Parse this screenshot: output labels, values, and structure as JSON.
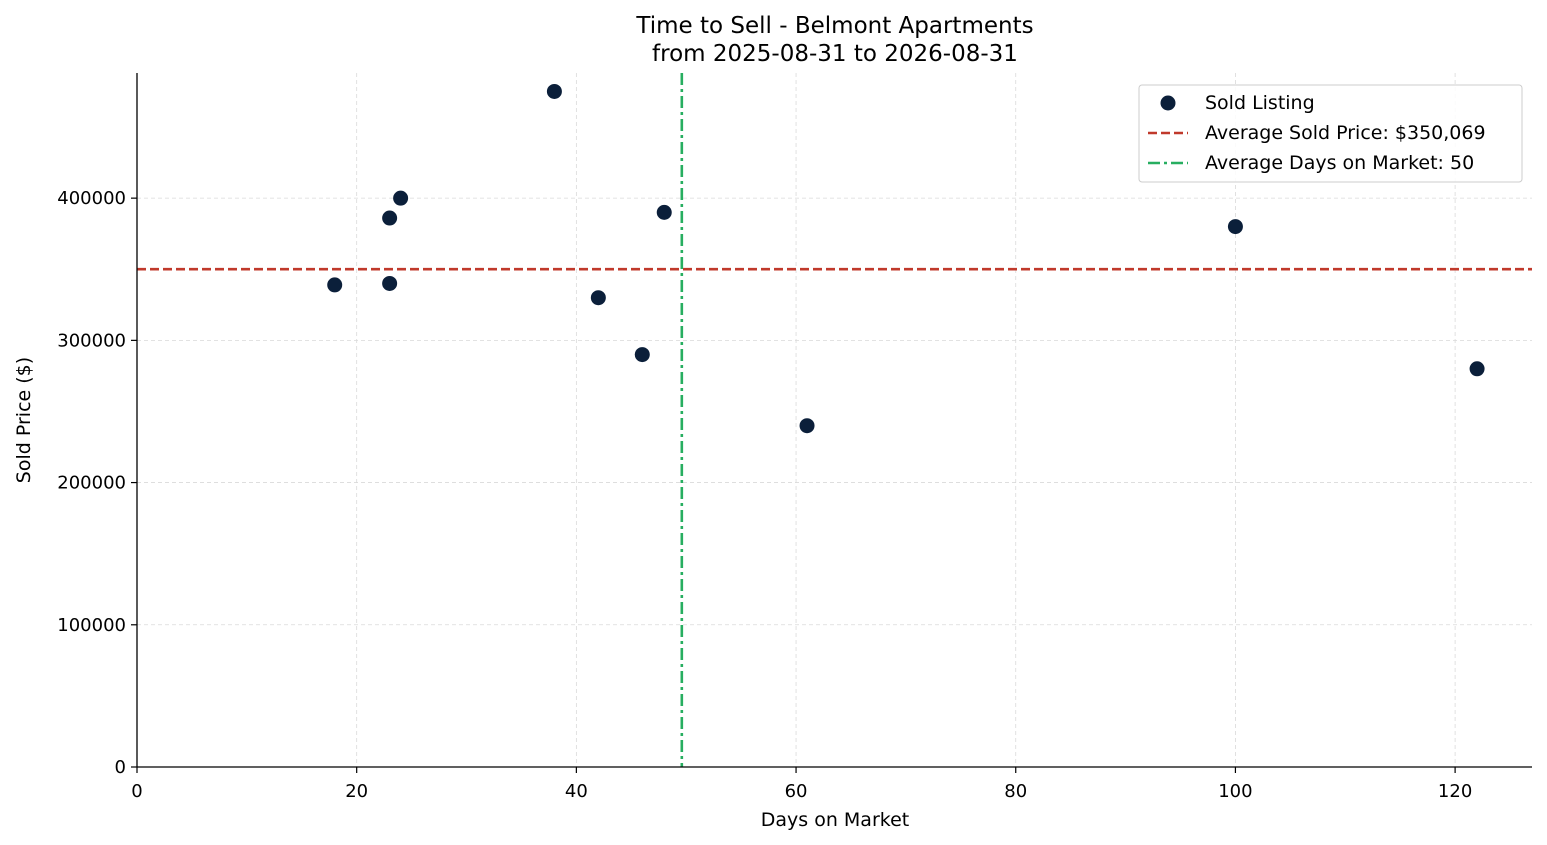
{
  "chart_data": {
    "type": "scatter",
    "title": "Time to Sell - Belmont Apartments",
    "subtitle": "from 2025-08-31 to 2026-08-31",
    "xlabel": "Days on Market",
    "ylabel": "Sold Price ($)",
    "xlim": [
      0,
      127
    ],
    "ylim": [
      0,
      488000
    ],
    "x_ticks": [
      0,
      20,
      40,
      60,
      80,
      100,
      120
    ],
    "y_ticks": [
      0,
      100000,
      200000,
      300000,
      400000
    ],
    "grid": true,
    "legend_position": "top-right",
    "series": [
      {
        "name": "Sold Listing",
        "color": "#0b1f3a",
        "points": [
          {
            "x": 18,
            "y": 339000
          },
          {
            "x": 23,
            "y": 386000
          },
          {
            "x": 23,
            "y": 340000
          },
          {
            "x": 24,
            "y": 400000
          },
          {
            "x": 38,
            "y": 475000
          },
          {
            "x": 42,
            "y": 330000
          },
          {
            "x": 46,
            "y": 290000
          },
          {
            "x": 48,
            "y": 390000
          },
          {
            "x": 61,
            "y": 240000
          },
          {
            "x": 100,
            "y": 380000
          },
          {
            "x": 122,
            "y": 280000
          }
        ]
      }
    ],
    "reference_lines": [
      {
        "orientation": "horizontal",
        "value": 350069,
        "name": "Average Sold Price: $350,069",
        "color": "#c0392b",
        "style": "dashed"
      },
      {
        "orientation": "vertical",
        "value": 49.6,
        "name": "Average Days on Market: 50",
        "color": "#27ae60",
        "style": "dashdot"
      }
    ]
  }
}
